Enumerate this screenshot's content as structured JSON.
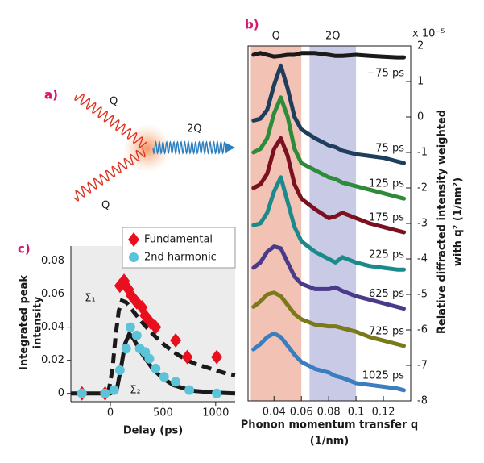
{
  "panel_a": {
    "label": "a)",
    "beam_1": "Q",
    "beam_2": "Q",
    "output": "2Q"
  },
  "chart_data": [
    {
      "type": "line",
      "panel_label": "b)",
      "exponent_label": "x 10⁻⁵",
      "x_label": [
        "Phonon momentum transfer q",
        "(1/nm)"
      ],
      "y_label": [
        "Relative diffracted intensity weighted",
        "with q² (1/nm²)"
      ],
      "regions": [
        {
          "label": "Q",
          "range": [
            0.023,
            0.06
          ],
          "color": "#f2c2b5"
        },
        {
          "label": "2Q",
          "range": [
            0.066,
            0.1
          ],
          "color": "#c9cbe6"
        }
      ],
      "x": [
        0.025,
        0.03,
        0.035,
        0.04,
        0.045,
        0.05,
        0.055,
        0.06,
        0.07,
        0.08,
        0.085,
        0.09,
        0.1,
        0.11,
        0.12,
        0.13,
        0.135
      ],
      "series": [
        {
          "name": "−75 ps",
          "color": "#1a1a1a",
          "values": [
            1.75,
            1.8,
            1.75,
            1.7,
            1.72,
            1.75,
            1.75,
            1.8,
            1.8,
            1.75,
            1.72,
            1.72,
            1.75,
            1.72,
            1.7,
            1.68,
            1.68
          ]
        },
        {
          "name": "75 ps",
          "color": "#1f3d5c",
          "values": [
            -0.1,
            -0.05,
            0.2,
            0.9,
            1.45,
            0.8,
            0.0,
            -0.35,
            -0.6,
            -0.8,
            -0.85,
            -0.95,
            -1.05,
            -1.1,
            -1.15,
            -1.25,
            -1.3
          ]
        },
        {
          "name": "125 ps",
          "color": "#2e8b3a",
          "values": [
            -1.0,
            -0.9,
            -0.6,
            0.1,
            0.55,
            0.0,
            -0.9,
            -1.3,
            -1.5,
            -1.7,
            -1.75,
            -1.85,
            -1.95,
            -2.05,
            -2.15,
            -2.25,
            -2.3
          ]
        },
        {
          "name": "175 ps",
          "color": "#7a1020",
          "values": [
            -2.0,
            -1.9,
            -1.6,
            -0.9,
            -0.6,
            -1.1,
            -1.9,
            -2.3,
            -2.6,
            -2.85,
            -2.8,
            -2.7,
            -2.85,
            -3.0,
            -3.1,
            -3.2,
            -3.25
          ]
        },
        {
          "name": "225 ps",
          "color": "#1a8a8a",
          "values": [
            -3.05,
            -3.0,
            -2.7,
            -2.1,
            -1.7,
            -2.4,
            -3.1,
            -3.5,
            -3.8,
            -4.0,
            -4.1,
            -3.95,
            -4.1,
            -4.2,
            -4.25,
            -4.3,
            -4.3
          ]
        },
        {
          "name": "625 ps",
          "color": "#4b3a8a",
          "values": [
            -4.25,
            -4.1,
            -3.8,
            -3.65,
            -3.7,
            -4.1,
            -4.5,
            -4.7,
            -4.85,
            -4.85,
            -4.8,
            -4.9,
            -5.05,
            -5.15,
            -5.25,
            -5.35,
            -5.4
          ]
        },
        {
          "name": "725 ps",
          "color": "#7a7a1a",
          "values": [
            -5.35,
            -5.2,
            -5.0,
            -4.95,
            -5.05,
            -5.3,
            -5.55,
            -5.7,
            -5.85,
            -5.9,
            -5.9,
            -5.95,
            -6.05,
            -6.2,
            -6.3,
            -6.4,
            -6.45
          ]
        },
        {
          "name": "1025 ps",
          "color": "#3a7ec0",
          "values": [
            -6.55,
            -6.4,
            -6.2,
            -6.1,
            -6.2,
            -6.45,
            -6.7,
            -6.9,
            -7.1,
            -7.2,
            -7.3,
            -7.35,
            -7.5,
            -7.55,
            -7.6,
            -7.65,
            -7.7
          ]
        }
      ],
      "xlim": [
        0.021,
        0.14
      ],
      "xticks": [
        0.04,
        0.06,
        0.08,
        0.1,
        0.12
      ],
      "ylim": [
        -8,
        2
      ],
      "yticks": [
        -8,
        -7,
        -6,
        -5,
        -4,
        -3,
        -2,
        -1,
        0,
        1,
        2
      ]
    },
    {
      "type": "scatter",
      "panel_label": "c)",
      "x_label": "Delay (ps)",
      "y_label": [
        "Integrated peak",
        "intensity"
      ],
      "series": [
        {
          "name": "Fundamental",
          "color": "#e8101e",
          "marker": "diamond",
          "x": [
            -270,
            -50,
            90,
            130,
            170,
            200,
            250,
            300,
            330,
            380,
            430,
            620,
            730,
            1010
          ],
          "values": [
            0.0,
            0.0,
            0.065,
            0.068,
            0.063,
            0.059,
            0.055,
            0.052,
            0.047,
            0.043,
            0.04,
            0.032,
            0.022,
            0.022
          ]
        },
        {
          "name": "2nd harmonic",
          "color": "#5bc4d8",
          "marker": "circle",
          "x": [
            -270,
            -50,
            35,
            90,
            150,
            190,
            250,
            280,
            330,
            370,
            430,
            510,
            620,
            750,
            1010
          ],
          "values": [
            0.0,
            0.0,
            0.002,
            0.014,
            0.027,
            0.04,
            0.035,
            0.027,
            0.025,
            0.021,
            0.015,
            0.01,
            0.007,
            0.002,
            0.0
          ]
        },
        {
          "name": "Σ₁",
          "color": "#1a1a1a",
          "dash": true,
          "x": [
            -20,
            20,
            50,
            80,
            110,
            150,
            200,
            300,
            400,
            500,
            600,
            700,
            800,
            900,
            1000,
            1100,
            1185
          ],
          "values": [
            0.0,
            0.015,
            0.035,
            0.05,
            0.056,
            0.055,
            0.051,
            0.043,
            0.036,
            0.03,
            0.025,
            0.021,
            0.018,
            0.016,
            0.014,
            0.012,
            0.011
          ]
        },
        {
          "name": "Σ₂",
          "color": "#1a1a1a",
          "dash": false,
          "x": [
            -375,
            0,
            60,
            100,
            140,
            180,
            220,
            300,
            400,
            500,
            600,
            700,
            800,
            1000,
            1185
          ],
          "values": [
            0.0,
            0.0,
            0.002,
            0.015,
            0.03,
            0.036,
            0.033,
            0.024,
            0.015,
            0.009,
            0.005,
            0.003,
            0.0015,
            0.0005,
            0.0
          ]
        }
      ],
      "xlim": [
        -375,
        1185
      ],
      "xticks": [
        0,
        500,
        1000
      ],
      "ylim": [
        -0.005,
        0.089
      ],
      "yticks": [
        0,
        0.02,
        0.04,
        0.06,
        0.08
      ]
    }
  ]
}
